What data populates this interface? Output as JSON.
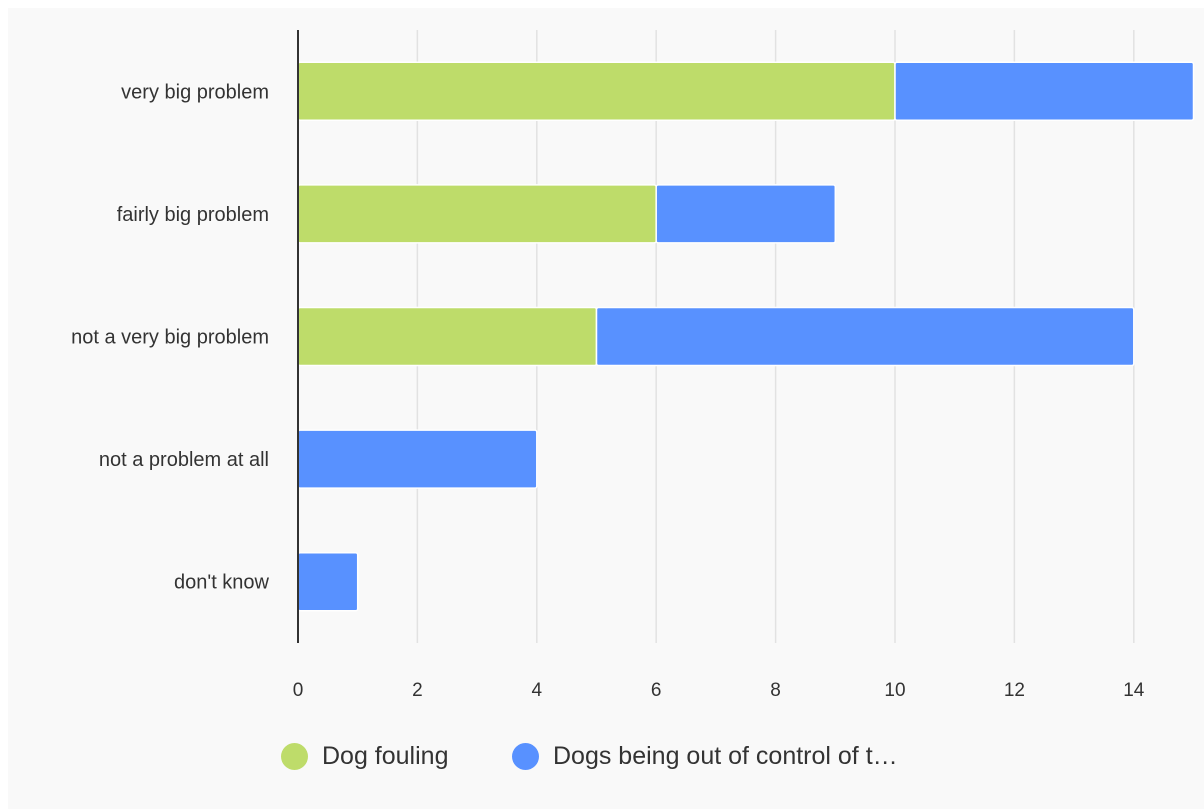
{
  "chart_data": {
    "type": "bar",
    "orientation": "horizontal",
    "stacked": true,
    "categories": [
      "very big problem",
      "fairly big problem",
      "not a very big problem",
      "not a problem at all",
      "don't know"
    ],
    "series": [
      {
        "name": "Dog fouling",
        "values": [
          10,
          6,
          5,
          0,
          0
        ],
        "color": "#bedc6a"
      },
      {
        "name": "Dogs being out of control of t…",
        "values": [
          5,
          3,
          9,
          4,
          1
        ],
        "color": "#5891ff"
      }
    ],
    "x_ticks": [
      0,
      2,
      4,
      6,
      8,
      10,
      12,
      14
    ],
    "xlim": [
      0,
      15
    ],
    "grid": true,
    "legend_position": "bottom-center"
  }
}
